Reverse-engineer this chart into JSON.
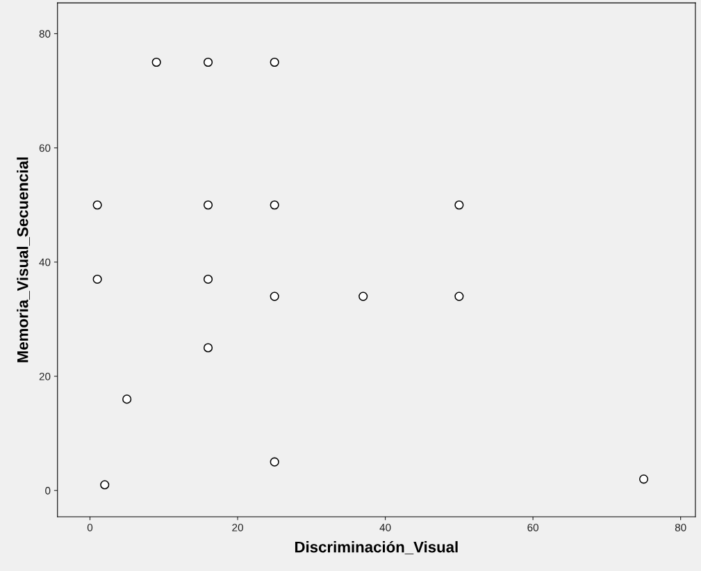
{
  "chart_data": {
    "type": "scatter",
    "xlabel": "Discriminación_Visual",
    "ylabel": "Memoria_Visual_Secuencial",
    "x": [
      9,
      16,
      25,
      1,
      16,
      25,
      50,
      1,
      16,
      25,
      37,
      50,
      16,
      5,
      2,
      25,
      75
    ],
    "values": [
      75,
      75,
      75,
      50,
      50,
      50,
      50,
      37,
      37,
      34,
      34,
      34,
      25,
      16,
      1,
      5,
      2
    ],
    "color": "#ffffff",
    "marker": "circle",
    "grid": false,
    "xlim": [
      -4.4,
      82
    ],
    "ylim": [
      -4.6,
      85.4
    ],
    "xticks": [
      0,
      20,
      40,
      60,
      80
    ],
    "yticks": [
      0,
      20,
      40,
      60,
      80
    ]
  }
}
